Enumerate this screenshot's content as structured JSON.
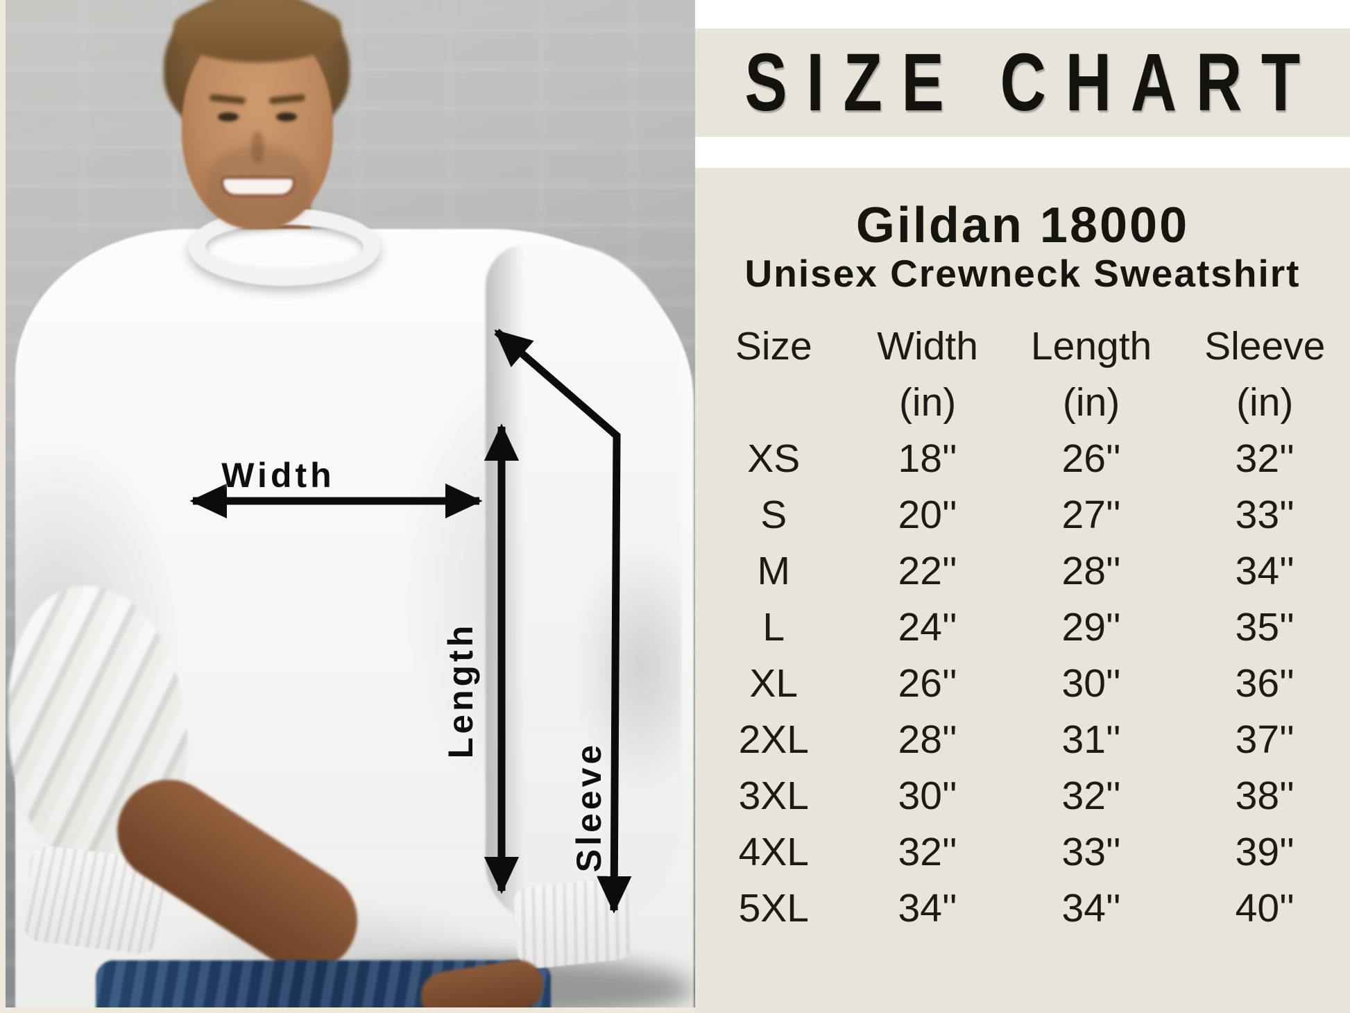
{
  "title": "SIZE CHART",
  "product": {
    "name": "Gildan 18000",
    "subtitle": "Unisex Crewneck Sweatshirt"
  },
  "photo_labels": {
    "width": "Width",
    "length": "Length",
    "sleeve": "Sleeve"
  },
  "table": {
    "headers": [
      "Size",
      "Width",
      "Length",
      "Sleeve"
    ],
    "units": [
      "",
      "(in)",
      "(in)",
      "(in)"
    ],
    "rows": [
      {
        "size": "XS",
        "width": "18''",
        "length": "26''",
        "sleeve": "32''"
      },
      {
        "size": "S",
        "width": "20''",
        "length": "27''",
        "sleeve": "33''"
      },
      {
        "size": "M",
        "width": "22''",
        "length": "28''",
        "sleeve": "34''"
      },
      {
        "size": "L",
        "width": "24''",
        "length": "29''",
        "sleeve": "35''"
      },
      {
        "size": "XL",
        "width": "26''",
        "length": "30''",
        "sleeve": "36''"
      },
      {
        "size": "2XL",
        "width": "28''",
        "length": "31''",
        "sleeve": "37''"
      },
      {
        "size": "3XL",
        "width": "30''",
        "length": "32''",
        "sleeve": "38''"
      },
      {
        "size": "4XL",
        "width": "32''",
        "length": "33''",
        "sleeve": "39''"
      },
      {
        "size": "5XL",
        "width": "34''",
        "length": "34''",
        "sleeve": "40''"
      }
    ]
  },
  "chart_data": {
    "type": "table",
    "title": "SIZE CHART",
    "subtitle": "Gildan 18000 Unisex Crewneck Sweatshirt",
    "columns": [
      "Size",
      "Width (in)",
      "Length (in)",
      "Sleeve (in)"
    ],
    "rows": [
      [
        "XS",
        18,
        26,
        32
      ],
      [
        "S",
        20,
        27,
        33
      ],
      [
        "M",
        22,
        28,
        34
      ],
      [
        "L",
        24,
        29,
        35
      ],
      [
        "XL",
        26,
        30,
        36
      ],
      [
        "2XL",
        28,
        31,
        37
      ],
      [
        "3XL",
        30,
        32,
        38
      ],
      [
        "4XL",
        32,
        33,
        39
      ],
      [
        "5XL",
        34,
        34,
        40
      ]
    ],
    "units": "inches"
  },
  "colors": {
    "panel_beige": "#e9e4da",
    "band_white": "#ffffff",
    "text_dark": "#1b1914",
    "arrow_black": "#0c0c0c",
    "photo_border_cream": "#efe9dd"
  }
}
